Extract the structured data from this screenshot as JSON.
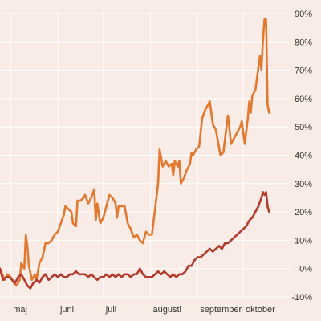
{
  "colors": {
    "background": "#f9ebe6",
    "grid": "#ffffff",
    "axis_text": "#333333",
    "series_orange": "#e3782f",
    "series_red": "#b23a2e"
  },
  "chart_data": {
    "type": "line",
    "title": "",
    "xlabel": "",
    "ylabel": "",
    "ylim": [
      -10,
      90
    ],
    "y_ticks": [
      {
        "value": -10,
        "label": "-10%"
      },
      {
        "value": 0,
        "label": "0%"
      },
      {
        "value": 10,
        "label": "10%"
      },
      {
        "value": 20,
        "label": "20%"
      },
      {
        "value": 30,
        "label": "30%"
      },
      {
        "value": 40,
        "label": "40%"
      },
      {
        "value": 50,
        "label": "50%"
      },
      {
        "value": 60,
        "label": "60%"
      },
      {
        "value": 70,
        "label": "70%"
      },
      {
        "value": 80,
        "label": "80%"
      },
      {
        "value": 90,
        "label": "90%"
      }
    ],
    "xlim": [
      "2020-04-24",
      "2020-10-30"
    ],
    "x_ticks": [
      {
        "date": "2020-05-01",
        "label": "maj"
      },
      {
        "date": "2020-06-01",
        "label": "juni"
      },
      {
        "date": "2020-07-01",
        "label": "juli"
      },
      {
        "date": "2020-08-01",
        "label": "augusti"
      },
      {
        "date": "2020-09-01",
        "label": "september"
      },
      {
        "date": "2020-10-01",
        "label": "oktober"
      }
    ],
    "grid": true,
    "y_axis_position": "right",
    "legend": "none",
    "series": [
      {
        "color": "#e3782f",
        "points": [
          [
            "2020-04-24",
            0
          ],
          [
            "2020-04-27",
            -4
          ],
          [
            "2020-04-29",
            -2
          ],
          [
            "2020-05-01",
            -3
          ],
          [
            "2020-05-03",
            -5
          ],
          [
            "2020-05-05",
            -6
          ],
          [
            "2020-05-07",
            -4
          ],
          [
            "2020-05-08",
            2
          ],
          [
            "2020-05-10",
            0
          ],
          [
            "2020-05-11",
            12
          ],
          [
            "2020-05-12",
            8
          ],
          [
            "2020-05-13",
            1
          ],
          [
            "2020-05-15",
            -4
          ],
          [
            "2020-05-17",
            -2
          ],
          [
            "2020-05-18",
            -4
          ],
          [
            "2020-05-20",
            2
          ],
          [
            "2020-05-22",
            4
          ],
          [
            "2020-05-24",
            9
          ],
          [
            "2020-05-26",
            9
          ],
          [
            "2020-05-28",
            10
          ],
          [
            "2020-05-30",
            12
          ],
          [
            "2020-06-01",
            13
          ],
          [
            "2020-06-03",
            16
          ],
          [
            "2020-06-05",
            19
          ],
          [
            "2020-06-06",
            22
          ],
          [
            "2020-06-08",
            21
          ],
          [
            "2020-06-10",
            20
          ],
          [
            "2020-06-11",
            16
          ],
          [
            "2020-06-13",
            15
          ],
          [
            "2020-06-14",
            24
          ],
          [
            "2020-06-16",
            24
          ],
          [
            "2020-06-18",
            25
          ],
          [
            "2020-06-19",
            26
          ],
          [
            "2020-06-21",
            23
          ],
          [
            "2020-06-23",
            25
          ],
          [
            "2020-06-25",
            28
          ],
          [
            "2020-06-26",
            17
          ],
          [
            "2020-06-27",
            23
          ],
          [
            "2020-06-29",
            16
          ],
          [
            "2020-07-01",
            18
          ],
          [
            "2020-07-03",
            22
          ],
          [
            "2020-07-05",
            26
          ],
          [
            "2020-07-07",
            25
          ],
          [
            "2020-07-09",
            23
          ],
          [
            "2020-07-10",
            18
          ],
          [
            "2020-07-11",
            22
          ],
          [
            "2020-07-13",
            22
          ],
          [
            "2020-07-15",
            22
          ],
          [
            "2020-07-17",
            16
          ],
          [
            "2020-07-19",
            14
          ],
          [
            "2020-07-21",
            11
          ],
          [
            "2020-07-23",
            12
          ],
          [
            "2020-07-25",
            10
          ],
          [
            "2020-07-27",
            9
          ],
          [
            "2020-07-29",
            13
          ],
          [
            "2020-07-31",
            12
          ],
          [
            "2020-08-02",
            12
          ],
          [
            "2020-08-04",
            21
          ],
          [
            "2020-08-06",
            30
          ],
          [
            "2020-08-07",
            42
          ],
          [
            "2020-08-09",
            36
          ],
          [
            "2020-08-11",
            38
          ],
          [
            "2020-08-13",
            36
          ],
          [
            "2020-08-15",
            37
          ],
          [
            "2020-08-16",
            33
          ],
          [
            "2020-08-17",
            38
          ],
          [
            "2020-08-19",
            36
          ],
          [
            "2020-08-20",
            38
          ],
          [
            "2020-08-21",
            30
          ],
          [
            "2020-08-23",
            32
          ],
          [
            "2020-08-25",
            35
          ],
          [
            "2020-08-27",
            37
          ],
          [
            "2020-08-28",
            41
          ],
          [
            "2020-08-29",
            40
          ],
          [
            "2020-08-31",
            42
          ],
          [
            "2020-09-02",
            43
          ],
          [
            "2020-09-04",
            53
          ],
          [
            "2020-09-06",
            56
          ],
          [
            "2020-09-08",
            58
          ],
          [
            "2020-09-09",
            59
          ],
          [
            "2020-09-11",
            51
          ],
          [
            "2020-09-13",
            49
          ],
          [
            "2020-09-15",
            43
          ],
          [
            "2020-09-16",
            40
          ],
          [
            "2020-09-18",
            41
          ],
          [
            "2020-09-20",
            50
          ],
          [
            "2020-09-21",
            54
          ],
          [
            "2020-09-23",
            44
          ],
          [
            "2020-09-25",
            46
          ],
          [
            "2020-09-27",
            48
          ],
          [
            "2020-09-29",
            50
          ],
          [
            "2020-09-30",
            52
          ],
          [
            "2020-10-02",
            44
          ],
          [
            "2020-10-04",
            53
          ],
          [
            "2020-10-05",
            59
          ],
          [
            "2020-10-06",
            55
          ],
          [
            "2020-10-07",
            61
          ],
          [
            "2020-10-09",
            63
          ],
          [
            "2020-10-11",
            71
          ],
          [
            "2020-10-12",
            75
          ],
          [
            "2020-10-13",
            70
          ],
          [
            "2020-10-14",
            81
          ],
          [
            "2020-10-15",
            88
          ],
          [
            "2020-10-16",
            88
          ],
          [
            "2020-10-17",
            58
          ],
          [
            "2020-10-18",
            55
          ]
        ]
      },
      {
        "color": "#b23a2e",
        "points": [
          [
            "2020-04-24",
            0
          ],
          [
            "2020-04-26",
            -4
          ],
          [
            "2020-04-28",
            -3
          ],
          [
            "2020-04-30",
            -3
          ],
          [
            "2020-05-02",
            -4
          ],
          [
            "2020-05-04",
            -5
          ],
          [
            "2020-05-06",
            -3
          ],
          [
            "2020-05-08",
            -2
          ],
          [
            "2020-05-10",
            -4
          ],
          [
            "2020-05-12",
            -6
          ],
          [
            "2020-05-14",
            -7
          ],
          [
            "2020-05-16",
            -5
          ],
          [
            "2020-05-18",
            -4
          ],
          [
            "2020-05-20",
            -5
          ],
          [
            "2020-05-22",
            -3
          ],
          [
            "2020-05-24",
            -2
          ],
          [
            "2020-05-26",
            -4
          ],
          [
            "2020-05-28",
            -3
          ],
          [
            "2020-05-30",
            -2
          ],
          [
            "2020-06-01",
            -3
          ],
          [
            "2020-06-03",
            -2
          ],
          [
            "2020-06-05",
            -3
          ],
          [
            "2020-06-07",
            -3
          ],
          [
            "2020-06-09",
            -2
          ],
          [
            "2020-06-11",
            -2
          ],
          [
            "2020-06-13",
            -1
          ],
          [
            "2020-06-15",
            -2
          ],
          [
            "2020-06-17",
            -2
          ],
          [
            "2020-06-19",
            -2
          ],
          [
            "2020-06-21",
            -3
          ],
          [
            "2020-06-23",
            -2
          ],
          [
            "2020-06-25",
            -3
          ],
          [
            "2020-06-27",
            -4
          ],
          [
            "2020-06-29",
            -3
          ],
          [
            "2020-07-01",
            -3
          ],
          [
            "2020-07-03",
            -2
          ],
          [
            "2020-07-05",
            -3
          ],
          [
            "2020-07-07",
            -2
          ],
          [
            "2020-07-09",
            -3
          ],
          [
            "2020-07-11",
            -2
          ],
          [
            "2020-07-13",
            -3
          ],
          [
            "2020-07-15",
            -2
          ],
          [
            "2020-07-17",
            -2
          ],
          [
            "2020-07-19",
            -3
          ],
          [
            "2020-07-21",
            -2
          ],
          [
            "2020-07-23",
            -2
          ],
          [
            "2020-07-25",
            0
          ],
          [
            "2020-07-27",
            -2
          ],
          [
            "2020-07-29",
            -3
          ],
          [
            "2020-07-31",
            -3
          ],
          [
            "2020-08-02",
            -3
          ],
          [
            "2020-08-04",
            -2
          ],
          [
            "2020-08-06",
            -1
          ],
          [
            "2020-08-08",
            -2
          ],
          [
            "2020-08-10",
            -1
          ],
          [
            "2020-08-12",
            -2
          ],
          [
            "2020-08-14",
            -3
          ],
          [
            "2020-08-16",
            -2
          ],
          [
            "2020-08-18",
            -3
          ],
          [
            "2020-08-20",
            -2
          ],
          [
            "2020-08-22",
            -2
          ],
          [
            "2020-08-24",
            -1
          ],
          [
            "2020-08-26",
            1
          ],
          [
            "2020-08-28",
            1
          ],
          [
            "2020-08-30",
            3
          ],
          [
            "2020-09-01",
            4
          ],
          [
            "2020-09-03",
            4
          ],
          [
            "2020-09-05",
            5
          ],
          [
            "2020-09-07",
            6
          ],
          [
            "2020-09-09",
            7
          ],
          [
            "2020-09-11",
            6
          ],
          [
            "2020-09-13",
            7
          ],
          [
            "2020-09-15",
            8
          ],
          [
            "2020-09-17",
            7
          ],
          [
            "2020-09-19",
            9
          ],
          [
            "2020-09-21",
            9
          ],
          [
            "2020-09-23",
            10
          ],
          [
            "2020-09-25",
            11
          ],
          [
            "2020-09-27",
            12
          ],
          [
            "2020-09-29",
            13
          ],
          [
            "2020-10-01",
            14
          ],
          [
            "2020-10-03",
            15
          ],
          [
            "2020-10-05",
            17
          ],
          [
            "2020-10-07",
            18
          ],
          [
            "2020-10-09",
            20
          ],
          [
            "2020-10-11",
            22
          ],
          [
            "2020-10-13",
            25
          ],
          [
            "2020-10-14",
            27
          ],
          [
            "2020-10-15",
            26
          ],
          [
            "2020-10-16",
            27
          ],
          [
            "2020-10-17",
            22
          ],
          [
            "2020-10-18",
            20
          ]
        ]
      }
    ]
  }
}
